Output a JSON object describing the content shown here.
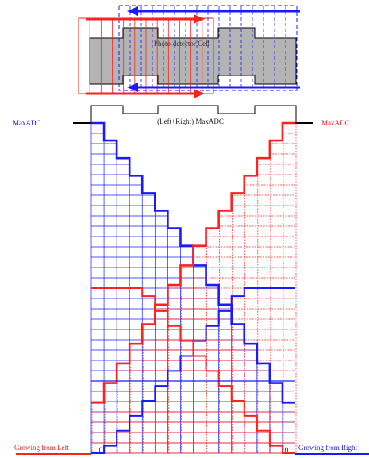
{
  "labels": {
    "cell_title": "Photo-detector Cell",
    "sum_max": "(Left+Right) MaxADC",
    "left_max": "MaxADC",
    "right_max": "MaxADC",
    "left_caption": "Growing from Left",
    "right_caption": "Growing from Right",
    "left_zero": "0",
    "right_zero": "0"
  },
  "colors": {
    "blue": "#1a1aff",
    "red": "#ff2020",
    "gray_fill": "#b4b4b4",
    "black": "#000000"
  },
  "staircase": {
    "steps_blue_left_to_right": 16,
    "steps_red_left_to_right": 16
  }
}
